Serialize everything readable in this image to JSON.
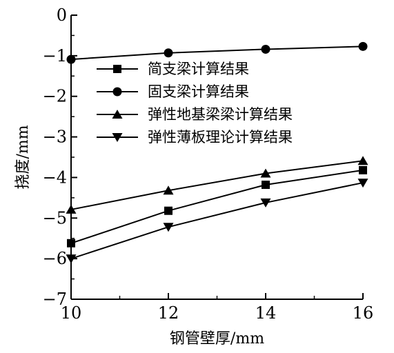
{
  "chart_data": {
    "type": "line",
    "xlabel": "钢管壁厚/mm",
    "ylabel": "挠度/mm",
    "x": [
      10,
      12,
      14,
      16
    ],
    "xlim": [
      10,
      16
    ],
    "ylim": [
      -7,
      0
    ],
    "xticks": [
      "10",
      "12",
      "14",
      "16"
    ],
    "yticks": [
      "0",
      "−1",
      "−2",
      "−3",
      "−4",
      "−5",
      "−6",
      "−7"
    ],
    "grid": false,
    "legend_position": "top-left",
    "series": [
      {
        "name": "简支梁计算结果",
        "marker": "square",
        "values": [
          -5.62,
          -4.82,
          -4.18,
          -3.82
        ]
      },
      {
        "name": "固支梁计算结果",
        "marker": "circle",
        "values": [
          -1.09,
          -0.93,
          -0.84,
          -0.77
        ]
      },
      {
        "name": "弹性地基梁梁计算结果",
        "marker": "triangle-up",
        "values": [
          -4.79,
          -4.32,
          -3.9,
          -3.59
        ]
      },
      {
        "name": "弹性薄板理论计算结果",
        "marker": "triangle-down",
        "values": [
          -6.0,
          -5.22,
          -4.62,
          -4.13
        ]
      }
    ]
  }
}
